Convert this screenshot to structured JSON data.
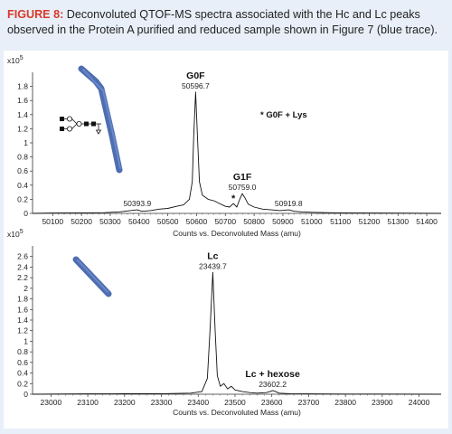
{
  "figure": {
    "label": "FIGURE 8:",
    "caption": "Deconvoluted QTOF-MS spectra associated with the Hc and Lc peaks observed in the Protein A purified and reduced sample shown in Figure 7 (blue trace).",
    "colors": {
      "label": "#d9392b",
      "frame": "#e8eff8",
      "trace": "#111111",
      "chain": "#3b5ea8"
    }
  },
  "chart_data": [
    {
      "type": "line",
      "scale_label": "x10^5",
      "scale_base": "x10",
      "scale_exp": "5",
      "xlabel": "Counts vs. Deconvoluted Mass (amu)",
      "xlim": [
        50030,
        51450
      ],
      "ylim": [
        0,
        2.0
      ],
      "x_ticks": [
        50100,
        50200,
        50300,
        50400,
        50500,
        50600,
        50700,
        50800,
        50900,
        51000,
        51100,
        51200,
        51300,
        51400
      ],
      "y_ticks": [
        0,
        0.2,
        0.4,
        0.6,
        0.8,
        1,
        1.2,
        1.4,
        1.6,
        1.8
      ],
      "y_tick_labels": [
        "0",
        "0.2",
        "0.4",
        "0.6",
        "0.8",
        "1",
        "1.2",
        "1.4",
        "1.6",
        "1.8"
      ],
      "icon": "heavy-chain-glycan-icon",
      "annotations": [
        {
          "text": "G0F",
          "x": 50596.7,
          "y": 1.72,
          "bold": true,
          "role": "name"
        },
        {
          "text": "50596.7",
          "x": 50596.7,
          "y": 1.72,
          "role": "mass"
        },
        {
          "text": "G1F",
          "x": 50759.0,
          "y": 0.28,
          "bold": true,
          "role": "name"
        },
        {
          "text": "50759.0",
          "x": 50759.0,
          "y": 0.28,
          "role": "mass"
        },
        {
          "text": "50393.9",
          "x": 50393.9,
          "y": 0.05,
          "role": "mass"
        },
        {
          "text": "50919.8",
          "x": 50919.8,
          "y": 0.05,
          "role": "mass"
        },
        {
          "text": "*",
          "x": 50728,
          "y": 0.14,
          "bold": true,
          "role": "marker"
        }
      ],
      "legend_note": "* G0F + Lys",
      "series": [
        {
          "x": [
            50030,
            50100,
            50200,
            50280,
            50330,
            50370,
            50393.9,
            50410,
            50440,
            50470,
            50500,
            50530,
            50555,
            50575,
            50585,
            50590,
            50596.7,
            50603,
            50610,
            50620,
            50640,
            50660,
            50680,
            50700,
            50715,
            50728,
            50740,
            50750,
            50759.0,
            50768,
            50780,
            50800,
            50830,
            50860,
            50890,
            50919.8,
            50940,
            50970,
            51000,
            51050,
            51100,
            51200,
            51300,
            51450
          ],
          "y": [
            0,
            0.005,
            0.008,
            0.01,
            0.02,
            0.04,
            0.05,
            0.03,
            0.04,
            0.06,
            0.07,
            0.1,
            0.12,
            0.2,
            0.45,
            1.1,
            1.72,
            1.1,
            0.45,
            0.26,
            0.2,
            0.18,
            0.14,
            0.1,
            0.09,
            0.14,
            0.09,
            0.2,
            0.28,
            0.22,
            0.13,
            0.09,
            0.06,
            0.05,
            0.04,
            0.05,
            0.03,
            0.02,
            0.015,
            0.01,
            0.008,
            0.005,
            0.004,
            0
          ]
        }
      ]
    },
    {
      "type": "line",
      "scale_label": "x10^5",
      "scale_base": "x10",
      "scale_exp": "5",
      "xlabel": "Counts vs. Deconvoluted Mass (amu)",
      "xlim": [
        22950,
        24060
      ],
      "ylim": [
        0,
        2.8
      ],
      "x_ticks": [
        23000,
        23100,
        23200,
        23300,
        23400,
        23500,
        23600,
        23700,
        23800,
        23900,
        24000
      ],
      "y_ticks": [
        0,
        0.2,
        0.4,
        0.6,
        0.8,
        1,
        1.2,
        1.4,
        1.6,
        1.8,
        2,
        2.2,
        2.4,
        2.6
      ],
      "y_tick_labels": [
        "0",
        "0.2",
        "0.4",
        "0.6",
        "0.8",
        "1",
        "1.2",
        "1.4",
        "1.6",
        "1.8",
        "2",
        "2.2",
        "2.4",
        "2.6"
      ],
      "icon": "light-chain-icon",
      "annotations": [
        {
          "text": "Lc",
          "x": 23439.7,
          "y": 2.3,
          "bold": true,
          "role": "name"
        },
        {
          "text": "23439.7",
          "x": 23439.7,
          "y": 2.3,
          "role": "mass"
        },
        {
          "text": "Lc + hexose",
          "x": 23602.2,
          "y": 0.07,
          "bold": true,
          "role": "name"
        },
        {
          "text": "23602.2",
          "x": 23602.2,
          "y": 0.07,
          "role": "mass"
        }
      ],
      "series": [
        {
          "x": [
            22950,
            23000,
            23100,
            23200,
            23300,
            23380,
            23410,
            23425,
            23432,
            23439.7,
            23446,
            23452,
            23460,
            23470,
            23480,
            23490,
            23500,
            23520,
            23540,
            23560,
            23585,
            23595,
            23602.2,
            23610,
            23620,
            23650,
            23700,
            23800,
            23900,
            24060
          ],
          "y": [
            0,
            0.004,
            0.006,
            0.008,
            0.01,
            0.02,
            0.05,
            0.3,
            1.2,
            2.3,
            1.2,
            0.35,
            0.15,
            0.2,
            0.1,
            0.15,
            0.08,
            0.05,
            0.03,
            0.02,
            0.03,
            0.05,
            0.07,
            0.05,
            0.02,
            0.01,
            0.006,
            0.004,
            0.003,
            0
          ]
        }
      ]
    }
  ]
}
